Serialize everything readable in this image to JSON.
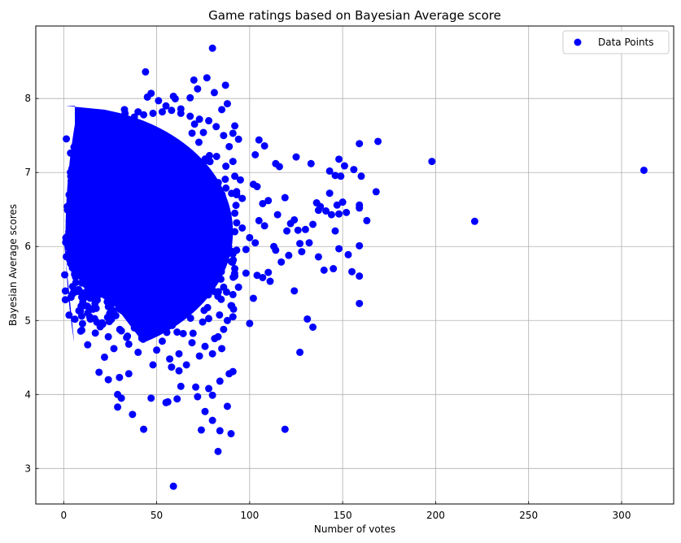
{
  "chart_data": {
    "type": "scatter",
    "title": "Game ratings based on Bayesian Average score",
    "xlabel": "Number of votes",
    "ylabel": "Bayesian Average scores",
    "xlim": [
      -15,
      328
    ],
    "ylim": [
      2.52,
      8.98
    ],
    "x_ticks": [
      0,
      50,
      100,
      150,
      200,
      250,
      300
    ],
    "y_ticks": [
      3,
      4,
      5,
      6,
      7,
      8
    ],
    "grid": true,
    "legend": {
      "position": "top-right",
      "entries": [
        "Data Points"
      ]
    },
    "marker_color": "#0000ff",
    "series": [
      {
        "name": "Data Points",
        "points": [
          [
            59,
            2.76
          ],
          [
            83,
            3.23
          ],
          [
            43,
            3.53
          ],
          [
            74,
            3.52
          ],
          [
            84,
            3.51
          ],
          [
            90,
            3.47
          ],
          [
            119,
            3.53
          ],
          [
            37,
            3.73
          ],
          [
            29,
            3.83
          ],
          [
            47,
            3.95
          ],
          [
            56,
            3.9
          ],
          [
            29,
            4.0
          ],
          [
            31,
            3.95
          ],
          [
            55,
            3.89
          ],
          [
            61,
            3.94
          ],
          [
            72,
            3.97
          ],
          [
            88,
            3.84
          ],
          [
            80,
            3.99
          ],
          [
            76,
            3.77
          ],
          [
            80,
            3.65
          ],
          [
            63,
            4.11
          ],
          [
            71,
            4.1
          ],
          [
            78,
            4.08
          ],
          [
            84,
            4.18
          ],
          [
            89,
            4.28
          ],
          [
            91,
            4.31
          ],
          [
            19,
            4.3
          ],
          [
            24,
            4.2
          ],
          [
            30,
            4.23
          ],
          [
            35,
            4.28
          ],
          [
            40,
            4.57
          ],
          [
            48,
            4.4
          ],
          [
            58,
            4.37
          ],
          [
            62,
            4.32
          ],
          [
            127,
            4.57
          ],
          [
            131,
            5.02
          ],
          [
            134,
            4.91
          ],
          [
            100,
            4.96
          ],
          [
            124,
            5.4
          ],
          [
            102,
            5.3
          ],
          [
            113,
            6.0
          ],
          [
            121,
            5.88
          ],
          [
            128,
            5.93
          ],
          [
            137,
            5.86
          ],
          [
            140,
            5.68
          ],
          [
            145,
            5.7
          ],
          [
            155,
            5.66
          ],
          [
            159,
            5.6
          ],
          [
            159,
            5.23
          ],
          [
            148,
            5.97
          ],
          [
            153,
            5.89
          ],
          [
            159,
            6.01
          ],
          [
            163,
            6.35
          ],
          [
            159,
            6.56
          ],
          [
            159,
            6.52
          ],
          [
            148,
            6.44
          ],
          [
            144,
            6.43
          ],
          [
            141,
            6.48
          ],
          [
            138,
            6.54
          ],
          [
            134,
            6.3
          ],
          [
            130,
            6.23
          ],
          [
            127,
            6.04
          ],
          [
            124,
            6.36
          ],
          [
            122,
            6.31
          ],
          [
            119,
            6.66
          ],
          [
            115,
            6.43
          ],
          [
            110,
            6.62
          ],
          [
            108,
            6.28
          ],
          [
            105,
            6.35
          ],
          [
            102,
            6.84
          ],
          [
            104,
            6.81
          ],
          [
            107,
            6.58
          ],
          [
            120,
            6.21
          ],
          [
            126,
            6.22
          ],
          [
            132,
            6.05
          ],
          [
            136,
            6.59
          ],
          [
            146,
            6.21
          ],
          [
            150,
            6.6
          ],
          [
            152,
            6.46
          ],
          [
            147,
            6.56
          ],
          [
            143,
            7.02
          ],
          [
            146,
            6.96
          ],
          [
            148,
            7.18
          ],
          [
            151,
            7.09
          ],
          [
            156,
            7.04
          ],
          [
            159,
            7.39
          ],
          [
            160,
            6.95
          ],
          [
            168,
            6.74
          ],
          [
            169,
            7.42
          ],
          [
            149,
            6.95
          ],
          [
            143,
            6.72
          ],
          [
            137,
            6.49
          ],
          [
            133,
            7.12
          ],
          [
            125,
            7.21
          ],
          [
            116,
            7.08
          ],
          [
            114,
            7.12
          ],
          [
            108,
            7.36
          ],
          [
            105,
            7.44
          ],
          [
            103,
            7.24
          ],
          [
            198,
            7.15
          ],
          [
            221,
            6.34
          ],
          [
            312,
            7.03
          ],
          [
            114,
            5.95
          ],
          [
            111,
            5.53
          ],
          [
            104,
            5.61
          ],
          [
            98,
            5.64
          ],
          [
            98,
            5.96
          ],
          [
            96,
            6.25
          ],
          [
            100,
            6.12
          ],
          [
            103,
            6.05
          ],
          [
            107,
            5.58
          ],
          [
            110,
            5.65
          ],
          [
            117,
            5.79
          ],
          [
            44,
            8.36
          ],
          [
            80,
            8.68
          ],
          [
            77,
            8.28
          ],
          [
            87,
            8.18
          ],
          [
            70,
            8.25
          ],
          [
            47,
            8.07
          ],
          [
            45,
            8.02
          ],
          [
            33,
            7.8
          ],
          [
            29,
            7.75
          ],
          [
            25,
            7.74
          ],
          [
            51,
            7.97
          ],
          [
            59,
            8.03
          ],
          [
            72,
            8.13
          ],
          [
            81,
            8.08
          ],
          [
            85,
            7.85
          ],
          [
            92,
            7.63
          ],
          [
            91,
            7.53
          ],
          [
            94,
            7.45
          ],
          [
            88,
            7.93
          ],
          [
            68,
            8.01
          ],
          [
            63,
            7.86
          ],
          [
            55,
            7.9
          ],
          [
            40,
            7.82
          ],
          [
            95,
            6.9
          ],
          [
            96,
            6.65
          ],
          [
            93,
            6.32
          ],
          [
            91,
            5.9
          ],
          [
            92,
            5.7
          ],
          [
            94,
            5.45
          ],
          [
            90,
            5.2
          ],
          [
            91,
            5.05
          ],
          [
            88,
            5.0
          ],
          [
            86,
            4.88
          ],
          [
            83,
            4.78
          ],
          [
            85,
            4.62
          ],
          [
            80,
            4.55
          ],
          [
            76,
            4.65
          ],
          [
            73,
            4.52
          ],
          [
            69,
            4.7
          ],
          [
            66,
            4.4
          ],
          [
            62,
            4.55
          ],
          [
            57,
            4.48
          ],
          [
            53,
            4.72
          ],
          [
            50,
            4.6
          ],
          [
            46,
            4.84
          ],
          [
            42,
            4.76
          ],
          [
            38,
            4.9
          ],
          [
            35,
            4.68
          ],
          [
            31,
            4.86
          ],
          [
            27,
            4.62
          ],
          [
            24,
            4.78
          ],
          [
            21,
            4.95
          ],
          [
            17,
            4.83
          ],
          [
            14,
            5.05
          ],
          [
            11,
            5.2
          ],
          [
            8,
            5.4
          ],
          [
            6,
            5.65
          ],
          [
            4,
            5.85
          ],
          [
            2,
            6.1
          ],
          [
            3,
            6.35
          ],
          [
            5,
            6.55
          ],
          [
            7,
            6.75
          ],
          [
            9,
            6.95
          ],
          [
            12,
            7.12
          ],
          [
            15,
            7.25
          ],
          [
            18,
            7.35
          ],
          [
            22,
            7.45
          ],
          [
            26,
            7.55
          ],
          [
            30,
            7.62
          ],
          [
            34,
            7.68
          ],
          [
            38,
            7.75
          ],
          [
            43,
            7.78
          ],
          [
            48,
            7.8
          ],
          [
            53,
            7.82
          ],
          [
            58,
            7.84
          ],
          [
            63,
            7.8
          ],
          [
            68,
            7.76
          ],
          [
            73,
            7.72
          ],
          [
            78,
            7.7
          ],
          [
            82,
            7.62
          ],
          [
            86,
            7.5
          ],
          [
            89,
            7.35
          ],
          [
            91,
            7.15
          ],
          [
            92,
            6.95
          ],
          [
            93,
            6.7
          ],
          [
            92,
            6.45
          ],
          [
            92,
            6.2
          ],
          [
            93,
            5.95
          ],
          [
            92,
            5.6
          ],
          [
            91,
            5.35
          ]
        ]
      }
    ]
  }
}
